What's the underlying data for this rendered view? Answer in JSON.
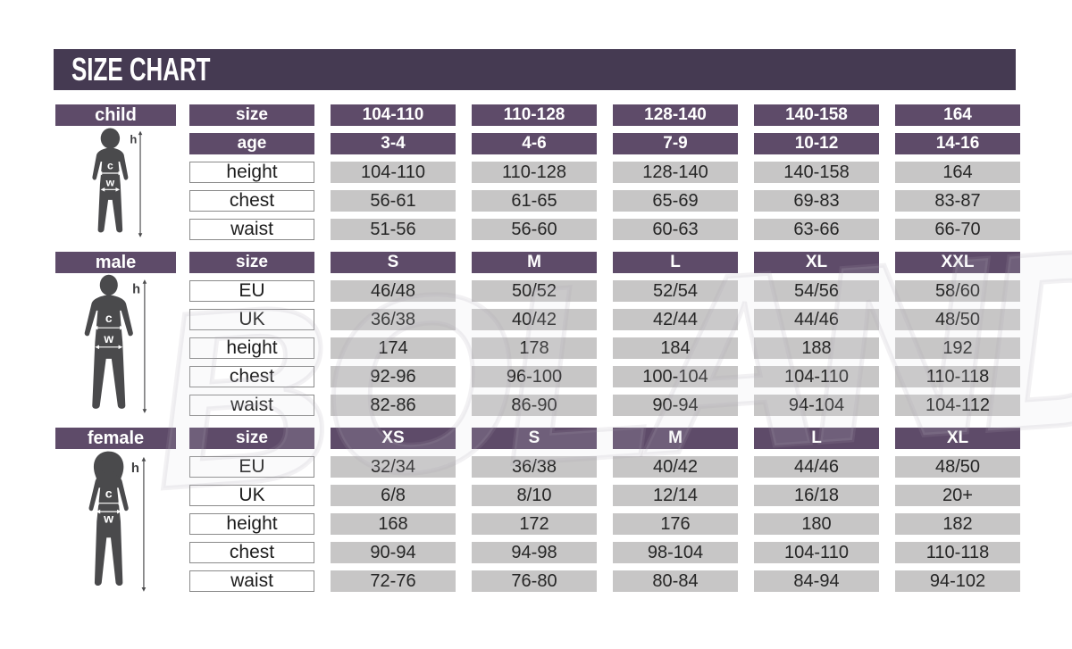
{
  "title": "SIZE CHART",
  "watermark": "BOLAND",
  "colors": {
    "title_bar": "#453a52",
    "header_cell": "#5e4b69",
    "data_cell": "#c7c6c6",
    "silhouette": "#4a4a4c"
  },
  "sections": [
    {
      "id": "child",
      "label": "child",
      "figure_labels": {
        "height": "h",
        "chest": "c",
        "waist": "w"
      },
      "rows": [
        {
          "label": "size",
          "type": "header",
          "values": [
            "104-110",
            "110-128",
            "128-140",
            "140-158",
            "164"
          ]
        },
        {
          "label": "age",
          "type": "header",
          "values": [
            "3-4",
            "4-6",
            "7-9",
            "10-12",
            "14-16"
          ]
        },
        {
          "label": "height",
          "type": "data",
          "values": [
            "104-110",
            "110-128",
            "128-140",
            "140-158",
            "164"
          ]
        },
        {
          "label": "chest",
          "type": "data",
          "values": [
            "56-61",
            "61-65",
            "65-69",
            "69-83",
            "83-87"
          ]
        },
        {
          "label": "waist",
          "type": "data",
          "values": [
            "51-56",
            "56-60",
            "60-63",
            "63-66",
            "66-70"
          ]
        }
      ]
    },
    {
      "id": "male",
      "label": "male",
      "figure_labels": {
        "height": "h",
        "chest": "c",
        "waist": "w"
      },
      "rows": [
        {
          "label": "size",
          "type": "header",
          "values": [
            "S",
            "M",
            "L",
            "XL",
            "XXL"
          ]
        },
        {
          "label": "EU",
          "type": "data",
          "values": [
            "46/48",
            "50/52",
            "52/54",
            "54/56",
            "58/60"
          ]
        },
        {
          "label": "UK",
          "type": "data",
          "values": [
            "36/38",
            "40/42",
            "42/44",
            "44/46",
            "48/50"
          ]
        },
        {
          "label": "height",
          "type": "data",
          "values": [
            "174",
            "178",
            "184",
            "188",
            "192"
          ]
        },
        {
          "label": "chest",
          "type": "data",
          "values": [
            "92-96",
            "96-100",
            "100-104",
            "104-110",
            "110-118"
          ]
        },
        {
          "label": "waist",
          "type": "data",
          "values": [
            "82-86",
            "86-90",
            "90-94",
            "94-104",
            "104-112"
          ]
        }
      ]
    },
    {
      "id": "female",
      "label": "female",
      "figure_labels": {
        "height": "h",
        "chest": "c",
        "waist": "w"
      },
      "rows": [
        {
          "label": "size",
          "type": "header",
          "values": [
            "XS",
            "S",
            "M",
            "L",
            "XL"
          ]
        },
        {
          "label": "EU",
          "type": "data",
          "values": [
            "32/34",
            "36/38",
            "40/42",
            "44/46",
            "48/50"
          ]
        },
        {
          "label": "UK",
          "type": "data",
          "values": [
            "6/8",
            "8/10",
            "12/14",
            "16/18",
            "20+"
          ]
        },
        {
          "label": "height",
          "type": "data",
          "values": [
            "168",
            "172",
            "176",
            "180",
            "182"
          ]
        },
        {
          "label": "chest",
          "type": "data",
          "values": [
            "90-94",
            "94-98",
            "98-104",
            "104-110",
            "110-118"
          ]
        },
        {
          "label": "waist",
          "type": "data",
          "values": [
            "72-76",
            "76-80",
            "80-84",
            "84-94",
            "94-102"
          ]
        }
      ]
    }
  ],
  "chart_data": {
    "type": "table",
    "title": "SIZE CHART",
    "tables": [
      {
        "group": "child",
        "row_headers": [
          "size",
          "age",
          "height",
          "chest",
          "waist"
        ],
        "rows": [
          [
            "104-110",
            "110-128",
            "128-140",
            "140-158",
            "164"
          ],
          [
            "3-4",
            "4-6",
            "7-9",
            "10-12",
            "14-16"
          ],
          [
            "104-110",
            "110-128",
            "128-140",
            "140-158",
            "164"
          ],
          [
            "56-61",
            "61-65",
            "65-69",
            "69-83",
            "83-87"
          ],
          [
            "51-56",
            "56-60",
            "60-63",
            "63-66",
            "66-70"
          ]
        ]
      },
      {
        "group": "male",
        "row_headers": [
          "size",
          "EU",
          "UK",
          "height",
          "chest",
          "waist"
        ],
        "rows": [
          [
            "S",
            "M",
            "L",
            "XL",
            "XXL"
          ],
          [
            "46/48",
            "50/52",
            "52/54",
            "54/56",
            "58/60"
          ],
          [
            "36/38",
            "40/42",
            "42/44",
            "44/46",
            "48/50"
          ],
          [
            "174",
            "178",
            "184",
            "188",
            "192"
          ],
          [
            "92-96",
            "96-100",
            "100-104",
            "104-110",
            "110-118"
          ],
          [
            "82-86",
            "86-90",
            "90-94",
            "94-104",
            "104-112"
          ]
        ]
      },
      {
        "group": "female",
        "row_headers": [
          "size",
          "EU",
          "UK",
          "height",
          "chest",
          "waist"
        ],
        "rows": [
          [
            "XS",
            "S",
            "M",
            "L",
            "XL"
          ],
          [
            "32/34",
            "36/38",
            "40/42",
            "44/46",
            "48/50"
          ],
          [
            "6/8",
            "8/10",
            "12/14",
            "16/18",
            "20+"
          ],
          [
            "168",
            "172",
            "176",
            "180",
            "182"
          ],
          [
            "90-94",
            "94-98",
            "98-104",
            "104-110",
            "110-118"
          ],
          [
            "72-76",
            "76-80",
            "80-84",
            "84-94",
            "94-102"
          ]
        ]
      }
    ]
  }
}
